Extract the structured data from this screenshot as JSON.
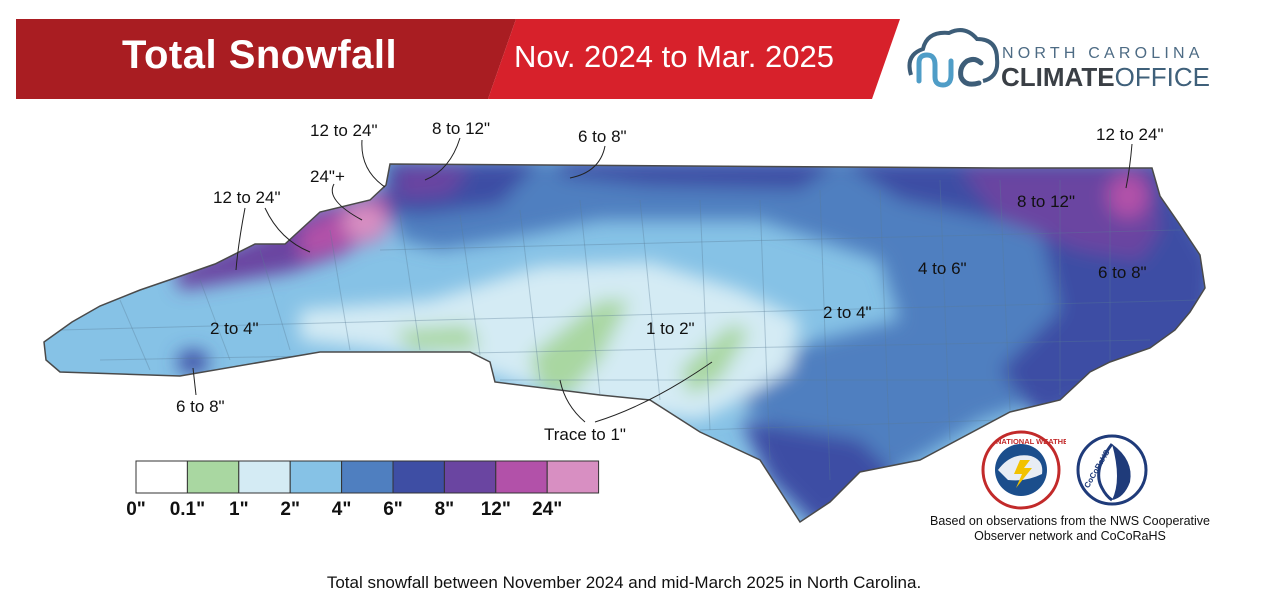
{
  "header": {
    "title": "Total Snowfall",
    "date_range": "Nov. 2024 to Mar. 2025",
    "title_color": "#a91d22",
    "date_color": "#d7212b"
  },
  "logo": {
    "line1": "NORTH CAROLINA",
    "line2_bold": "CLIMATE",
    "line2_light": "OFFICE"
  },
  "map_labels": [
    {
      "text": "12 to 24\""
    },
    {
      "text": "8 to 12\""
    },
    {
      "text": "6 to 8\""
    },
    {
      "text": "24\"+"
    },
    {
      "text": "12 to 24\""
    },
    {
      "text": "12 to 24\""
    },
    {
      "text": "8 to 12\""
    },
    {
      "text": "4 to 6\""
    },
    {
      "text": "6 to 8\""
    },
    {
      "text": "2 to 4\""
    },
    {
      "text": "2 to 4\""
    },
    {
      "text": "1 to 2\""
    },
    {
      "text": "6 to 8\""
    },
    {
      "text": "Trace to 1\""
    }
  ],
  "legend": {
    "colors": [
      "#ffffff",
      "#a9d7a1",
      "#d4ebf4",
      "#86c2e6",
      "#4f7fc0",
      "#3e4ea4",
      "#6a45a1",
      "#b251a9",
      "#d88fc2"
    ],
    "labels": [
      "0\"",
      "0.1\"",
      "1\"",
      "2\"",
      "4\"",
      "6\"",
      "8\"",
      "12\"",
      "24\""
    ]
  },
  "attribution": {
    "line1": "Based on observations from the NWS Cooperative",
    "line2": "Observer network and CoCoRaHS"
  },
  "nws_logo_text": "NATIONAL WEATHER SERVICE",
  "cocorahs_logo_text": "CoCoRaHS",
  "caption": "Total snowfall between November 2024 and mid-March 2025 in North Carolina."
}
